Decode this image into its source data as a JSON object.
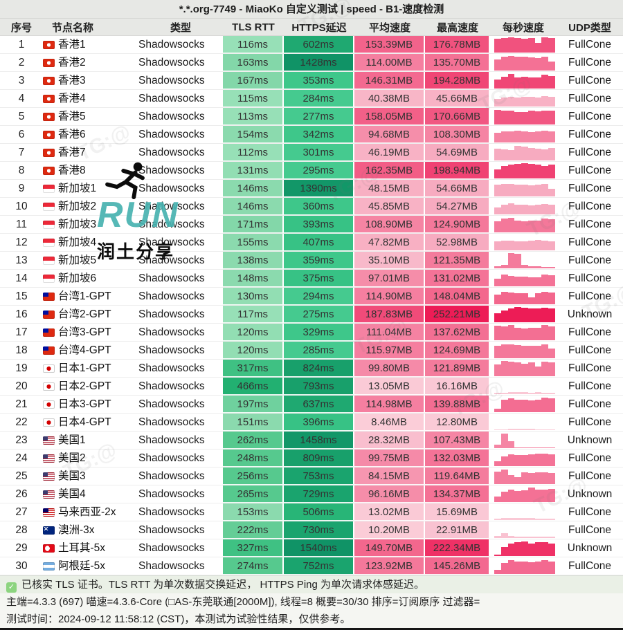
{
  "title": "*.*.org-7749 - MiaoKo 自定义测试 | speed - B1-速度检测",
  "columns": [
    "序号",
    "节点名称",
    "类型",
    "TLS RTT",
    "HTTPS延迟",
    "平均速度",
    "最高速度",
    "每秒速度",
    "UDP类型"
  ],
  "watermark": {
    "run_label": "RUN",
    "run_sub": "润土分享",
    "tg": "TG:@",
    "run_color": "#48b2b0"
  },
  "footer": {
    "check_icon": "✓",
    "line1": "已核实 TLS 证书。TLS RTT 为单次数据交换延迟， HTTPS Ping 为单次请求体感延迟。",
    "line2": "主端=4.3.3 (697) 喵速=4.3.6-Core (□AS-东莞联通[2000M]), 线程=8 概要=30/30 排序=订阅原序 过滤器=",
    "line3": "测试时间：2024-09-12 11:58:12 (CST)，本测试为试验性结果，仅供参考。"
  },
  "rows": [
    {
      "n": 1,
      "flag": "hk",
      "name": "香港1",
      "type": "Shadowsocks",
      "tls": "116ms",
      "tls_color": "#97e0b7",
      "https": "602ms",
      "https_color": "#1fa971",
      "avg": "153.39MB",
      "avg_color": "#f2638b",
      "max": "176.78MB",
      "max_color": "#f1527e",
      "udp": "FullCone",
      "bars": [
        0.85,
        0.92,
        0.95,
        0.9,
        0.88,
        0.9,
        0.6,
        0.95,
        0.9
      ]
    },
    {
      "n": 2,
      "flag": "hk",
      "name": "香港2",
      "type": "Shadowsocks",
      "tls": "163ms",
      "tls_color": "#83d7a9",
      "https": "1428ms",
      "https_color": "#109366",
      "avg": "114.00MB",
      "avg_color": "#f57fa0",
      "max": "135.70MB",
      "max_color": "#f47195",
      "udp": "FullCone",
      "bars": [
        0.7,
        0.85,
        0.9,
        0.88,
        0.85,
        0.82,
        0.8,
        0.85,
        0.55
      ]
    },
    {
      "n": 3,
      "flag": "hk",
      "name": "香港3",
      "type": "Shadowsocks",
      "tls": "167ms",
      "tls_color": "#83d7a9",
      "https": "353ms",
      "https_color": "#3ec78a",
      "avg": "146.31MB",
      "avg_color": "#f36990",
      "max": "194.28MB",
      "max_color": "#f04675",
      "udp": "FullCone",
      "bars": [
        0.55,
        0.75,
        0.9,
        0.7,
        0.72,
        0.7,
        0.68,
        0.85,
        0.8
      ]
    },
    {
      "n": 4,
      "flag": "hk",
      "name": "香港4",
      "type": "Shadowsocks",
      "tls": "115ms",
      "tls_color": "#97e0b7",
      "https": "284ms",
      "https_color": "#45ca8f",
      "avg": "40.38MB",
      "avg_color": "#f8b6c7",
      "max": "45.66MB",
      "max_color": "#f8b2c5",
      "udp": "FullCone",
      "bars": [
        0.5,
        0.55,
        0.6,
        0.55,
        0.62,
        0.6,
        0.58,
        0.65,
        0.6
      ]
    },
    {
      "n": 5,
      "flag": "hk",
      "name": "香港5",
      "type": "Shadowsocks",
      "tls": "113ms",
      "tls_color": "#97e0b7",
      "https": "277ms",
      "https_color": "#45ca8f",
      "avg": "158.05MB",
      "avg_color": "#f26088",
      "max": "170.66MB",
      "max_color": "#f15782",
      "udp": "FullCone",
      "bars": [
        0.9,
        0.88,
        0.85,
        0.8,
        0.78,
        0.85,
        0.82,
        0.88,
        0.85
      ]
    },
    {
      "n": 6,
      "flag": "hk",
      "name": "香港6",
      "type": "Shadowsocks",
      "tls": "154ms",
      "tls_color": "#8bdaae",
      "https": "342ms",
      "https_color": "#3ec78a",
      "avg": "94.68MB",
      "avg_color": "#f58eaa",
      "max": "108.30MB",
      "max_color": "#f584a3",
      "udp": "FullCone",
      "bars": [
        0.6,
        0.68,
        0.7,
        0.72,
        0.68,
        0.65,
        0.7,
        0.75,
        0.7
      ]
    },
    {
      "n": 7,
      "flag": "hk",
      "name": "香港7",
      "type": "Shadowsocks",
      "tls": "112ms",
      "tls_color": "#97e0b7",
      "https": "301ms",
      "https_color": "#45ca8f",
      "avg": "46.19MB",
      "avg_color": "#f8b2c5",
      "max": "54.69MB",
      "max_color": "#f7abc0",
      "udp": "FullCone",
      "bars": [
        0.75,
        0.7,
        0.65,
        0.9,
        0.85,
        0.8,
        0.75,
        0.7,
        0.8
      ]
    },
    {
      "n": 8,
      "flag": "hk",
      "name": "香港8",
      "type": "Shadowsocks",
      "tls": "131ms",
      "tls_color": "#92deb3",
      "https": "295ms",
      "https_color": "#45ca8f",
      "avg": "162.35MB",
      "avg_color": "#f25d86",
      "max": "198.94MB",
      "max_color": "#f04273",
      "udp": "FullCone",
      "bars": [
        0.55,
        0.8,
        0.85,
        0.9,
        0.95,
        0.9,
        0.85,
        0.8,
        0.85
      ]
    },
    {
      "n": 9,
      "flag": "sg",
      "name": "新加坡1",
      "type": "Shadowsocks",
      "tls": "146ms",
      "tls_color": "#8bdaae",
      "https": "1390ms",
      "https_color": "#129768",
      "avg": "48.15MB",
      "avg_color": "#f8b0c3",
      "max": "54.66MB",
      "max_color": "#f7abc0",
      "udp": "FullCone",
      "bars": [
        0.72,
        0.8,
        0.78,
        0.75,
        0.72,
        0.7,
        0.72,
        0.78,
        0.5
      ]
    },
    {
      "n": 10,
      "flag": "sg",
      "name": "新加坡2",
      "type": "Shadowsocks",
      "tls": "146ms",
      "tls_color": "#8bdaae",
      "https": "360ms",
      "https_color": "#3ec78a",
      "avg": "45.85MB",
      "avg_color": "#f8b2c5",
      "max": "54.27MB",
      "max_color": "#f7abc0",
      "udp": "FullCone",
      "bars": [
        0.45,
        0.6,
        0.68,
        0.62,
        0.6,
        0.58,
        0.6,
        0.65,
        0.62
      ]
    },
    {
      "n": 11,
      "flag": "sg",
      "name": "新加坡3",
      "type": "Shadowsocks",
      "tls": "171ms",
      "tls_color": "#83d7a9",
      "https": "393ms",
      "https_color": "#37c285",
      "avg": "108.90MB",
      "avg_color": "#f584a3",
      "max": "124.90MB",
      "max_color": "#f4789a",
      "udp": "FullCone",
      "bars": [
        0.7,
        0.85,
        0.9,
        0.75,
        0.7,
        0.75,
        0.72,
        0.88,
        0.82
      ]
    },
    {
      "n": 12,
      "flag": "sg",
      "name": "新加坡4",
      "type": "Shadowsocks",
      "tls": "155ms",
      "tls_color": "#8bdaae",
      "https": "407ms",
      "https_color": "#37c285",
      "avg": "47.82MB",
      "avg_color": "#f8b0c3",
      "max": "52.98MB",
      "max_color": "#f7abc0",
      "udp": "FullCone",
      "bars": [
        0.55,
        0.62,
        0.6,
        0.58,
        0.56,
        0.6,
        0.64,
        0.6,
        0.58
      ]
    },
    {
      "n": 13,
      "flag": "sg",
      "name": "新加坡5",
      "type": "Shadowsocks",
      "tls": "138ms",
      "tls_color": "#8bdaae",
      "https": "359ms",
      "https_color": "#3ec78a",
      "avg": "35.10MB",
      "avg_color": "#f8b9ca",
      "max": "121.35MB",
      "max_color": "#f47b9c",
      "udp": "FullCone",
      "bars": [
        0.15,
        0.2,
        0.95,
        0.9,
        0.2,
        0.15,
        0.12,
        0.1,
        0.1
      ]
    },
    {
      "n": 14,
      "flag": "sg",
      "name": "新加坡6",
      "type": "Shadowsocks",
      "tls": "148ms",
      "tls_color": "#8bdaae",
      "https": "375ms",
      "https_color": "#37c285",
      "avg": "97.01MB",
      "avg_color": "#f58da9",
      "max": "131.02MB",
      "max_color": "#f47397",
      "udp": "FullCone",
      "bars": [
        0.5,
        0.75,
        0.65,
        0.62,
        0.6,
        0.58,
        0.56,
        0.75,
        0.7
      ]
    },
    {
      "n": 15,
      "flag": "tw",
      "name": "台湾1-GPT",
      "type": "Shadowsocks",
      "tls": "130ms",
      "tls_color": "#92deb3",
      "https": "294ms",
      "https_color": "#45ca8f",
      "avg": "114.90MB",
      "avg_color": "#f57fa0",
      "max": "148.04MB",
      "max_color": "#f3678d",
      "udp": "FullCone",
      "bars": [
        0.6,
        0.78,
        0.75,
        0.7,
        0.68,
        0.45,
        0.7,
        0.78,
        0.72
      ]
    },
    {
      "n": 16,
      "flag": "tw",
      "name": "台湾2-GPT",
      "type": "Shadowsocks",
      "tls": "117ms",
      "tls_color": "#97e0b7",
      "https": "275ms",
      "https_color": "#45ca8f",
      "avg": "187.83MB",
      "avg_color": "#f04b79",
      "max": "252.21MB",
      "max_color": "#ed1c56",
      "udp": "Unknown",
      "bars": [
        0.55,
        0.75,
        0.85,
        0.95,
        0.9,
        0.85,
        0.88,
        0.92,
        0.85
      ]
    },
    {
      "n": 17,
      "flag": "tw",
      "name": "台湾3-GPT",
      "type": "Shadowsocks",
      "tls": "120ms",
      "tls_color": "#92deb3",
      "https": "329ms",
      "https_color": "#3ec78a",
      "avg": "111.04MB",
      "avg_color": "#f582a2",
      "max": "137.62MB",
      "max_color": "#f36f93",
      "udp": "FullCone",
      "bars": [
        0.9,
        0.85,
        0.95,
        0.8,
        0.75,
        0.8,
        0.78,
        0.95,
        0.88
      ]
    },
    {
      "n": 18,
      "flag": "tw",
      "name": "台湾4-GPT",
      "type": "Shadowsocks",
      "tls": "120ms",
      "tls_color": "#92deb3",
      "https": "285ms",
      "https_color": "#45ca8f",
      "avg": "115.97MB",
      "avg_color": "#f57e9f",
      "max": "124.69MB",
      "max_color": "#f4789a",
      "udp": "FullCone",
      "bars": [
        0.8,
        0.88,
        0.85,
        0.82,
        0.8,
        0.78,
        0.8,
        0.85,
        0.6
      ]
    },
    {
      "n": 19,
      "flag": "jp",
      "name": "日本1-GPT",
      "type": "Shadowsocks",
      "tls": "317ms",
      "tls_color": "#3fc183",
      "https": "824ms",
      "https_color": "#18a06b",
      "avg": "99.80MB",
      "avg_color": "#f58aa8",
      "max": "121.89MB",
      "max_color": "#f47b9c",
      "udp": "FullCone",
      "bars": [
        0.75,
        0.95,
        0.9,
        0.85,
        0.8,
        0.85,
        0.6,
        0.9,
        0.85
      ]
    },
    {
      "n": 20,
      "flag": "jp",
      "name": "日本2-GPT",
      "type": "Shadowsocks",
      "tls": "466ms",
      "tls_color": "#22b071",
      "https": "793ms",
      "https_color": "#18a06b",
      "avg": "13.05MB",
      "avg_color": "#facad6",
      "max": "16.16MB",
      "max_color": "#fac8d5",
      "udp": "FullCone",
      "bars": [
        0.08,
        0.1,
        0.12,
        0.12,
        0.11,
        0.1,
        0.11,
        0.1,
        0.09
      ]
    },
    {
      "n": 21,
      "flag": "jp",
      "name": "日本3-GPT",
      "type": "Shadowsocks",
      "tls": "197ms",
      "tls_color": "#6fd19e",
      "https": "637ms",
      "https_color": "#1fa971",
      "avg": "114.98MB",
      "avg_color": "#f57fa0",
      "max": "139.88MB",
      "max_color": "#f36d92",
      "udp": "FullCone",
      "bars": [
        0.2,
        0.8,
        0.85,
        0.8,
        0.78,
        0.75,
        0.78,
        0.9,
        0.85
      ]
    },
    {
      "n": 22,
      "flag": "jp",
      "name": "日本4-GPT",
      "type": "Shadowsocks",
      "tls": "151ms",
      "tls_color": "#8bdaae",
      "https": "396ms",
      "https_color": "#37c285",
      "avg": "8.46MB",
      "avg_color": "#fbcdd8",
      "max": "12.80MB",
      "max_color": "#facad6",
      "udp": "FullCone",
      "bars": [
        0.05,
        0.06,
        0.07,
        0.08,
        0.07,
        0.07,
        0.06,
        0.06,
        0.06
      ]
    },
    {
      "n": 23,
      "flag": "us",
      "name": "美国1",
      "type": "Shadowsocks",
      "tls": "262ms",
      "tls_color": "#56c98e",
      "https": "1458ms",
      "https_color": "#129768",
      "avg": "28.32MB",
      "avg_color": "#f9bece",
      "max": "107.43MB",
      "max_color": "#f585a4",
      "udp": "Unknown",
      "bars": [
        0.2,
        0.9,
        0.45,
        0.04,
        0.04,
        0.04,
        0.04,
        0.04,
        0.04
      ]
    },
    {
      "n": 24,
      "flag": "us",
      "name": "美国2",
      "type": "Shadowsocks",
      "tls": "248ms",
      "tls_color": "#56c98e",
      "https": "809ms",
      "https_color": "#18a06b",
      "avg": "99.75MB",
      "avg_color": "#f58aa8",
      "max": "132.03MB",
      "max_color": "#f47397",
      "udp": "FullCone",
      "bars": [
        0.3,
        0.6,
        0.75,
        0.7,
        0.68,
        0.72,
        0.78,
        0.8,
        0.75
      ]
    },
    {
      "n": 25,
      "flag": "us",
      "name": "美国3",
      "type": "Shadowsocks",
      "tls": "256ms",
      "tls_color": "#56c98e",
      "https": "753ms",
      "https_color": "#1aa46e",
      "avg": "84.15MB",
      "avg_color": "#f696b0",
      "max": "119.64MB",
      "max_color": "#f47c9d",
      "udp": "FullCone",
      "bars": [
        0.8,
        0.9,
        0.55,
        0.45,
        0.75,
        0.7,
        0.72,
        0.75,
        0.7
      ]
    },
    {
      "n": 26,
      "flag": "us",
      "name": "美国4",
      "type": "Shadowsocks",
      "tls": "265ms",
      "tls_color": "#56c98e",
      "https": "729ms",
      "https_color": "#1aa46e",
      "avg": "96.16MB",
      "avg_color": "#f58da9",
      "max": "134.37MB",
      "max_color": "#f47195",
      "udp": "Unknown",
      "bars": [
        0.35,
        0.65,
        0.8,
        0.7,
        0.75,
        0.9,
        0.8,
        0.78,
        0.82
      ]
    },
    {
      "n": 27,
      "flag": "my",
      "name": "马来西亚-2x",
      "type": "Shadowsocks",
      "tls": "153ms",
      "tls_color": "#8bdaae",
      "https": "506ms",
      "https_color": "#28b577",
      "avg": "13.02MB",
      "avg_color": "#facad6",
      "max": "15.69MB",
      "max_color": "#fac8d5",
      "udp": "FullCone",
      "bars": [
        0.1,
        0.11,
        0.12,
        0.12,
        0.12,
        0.11,
        0.1,
        0.09,
        0.08
      ]
    },
    {
      "n": 28,
      "flag": "au",
      "name": "澳洲-3x",
      "type": "Shadowsocks",
      "tls": "222ms",
      "tls_color": "#64cd96",
      "https": "730ms",
      "https_color": "#1aa46e",
      "avg": "10.20MB",
      "avg_color": "#fbccd7",
      "max": "22.91MB",
      "max_color": "#f9c2d1",
      "udp": "FullCone",
      "bars": [
        0.12,
        0.3,
        0.15,
        0.1,
        0.09,
        0.09,
        0.08,
        0.08,
        0.08
      ]
    },
    {
      "n": 29,
      "flag": "tr",
      "name": "土耳其-5x",
      "type": "Shadowsocks",
      "tls": "327ms",
      "tls_color": "#3fc183",
      "https": "1540ms",
      "https_color": "#109366",
      "avg": "149.70MB",
      "avg_color": "#f3678d",
      "max": "222.34MB",
      "max_color": "#ef3166",
      "udp": "Unknown",
      "bars": [
        0.1,
        0.55,
        0.8,
        0.85,
        0.9,
        0.8,
        0.85,
        0.88,
        0.8
      ]
    },
    {
      "n": 30,
      "flag": "ar",
      "name": "阿根廷-5x",
      "type": "Shadowsocks",
      "tls": "274ms",
      "tls_color": "#56c98e",
      "https": "752ms",
      "https_color": "#1aa46e",
      "avg": "123.92MB",
      "avg_color": "#f4789a",
      "max": "145.26MB",
      "max_color": "#f36990",
      "udp": "FullCone",
      "bars": [
        0.25,
        0.7,
        0.85,
        0.8,
        0.78,
        0.75,
        0.8,
        0.85,
        0.8
      ]
    }
  ]
}
